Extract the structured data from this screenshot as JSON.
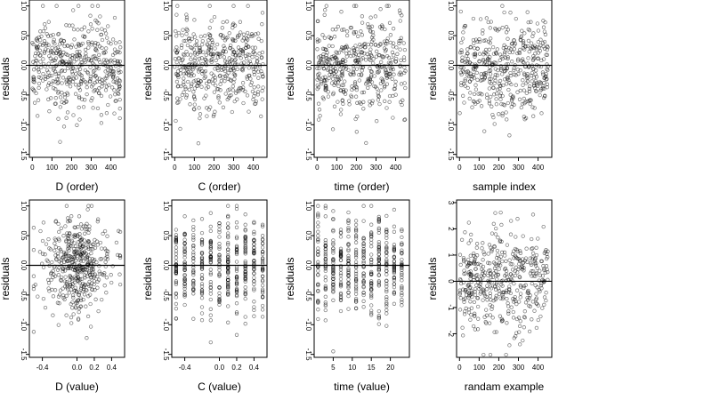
{
  "figure": {
    "ylabel": "residuals",
    "panels": [
      {
        "xlabel": "D (order)"
      },
      {
        "xlabel": "C (order)"
      },
      {
        "xlabel": "time (order)"
      },
      {
        "xlabel": "sample index"
      },
      {
        "xlabel": "D (value)"
      },
      {
        "xlabel": "C (value)"
      },
      {
        "xlabel": "time (value)"
      },
      {
        "xlabel": "randam example"
      }
    ]
  },
  "chart_data": [
    {
      "type": "scatter",
      "xlabel": "D (order)",
      "ylabel": "residuals",
      "xlim": [
        -15,
        470
      ],
      "ylim": [
        -1.55,
        1.1
      ],
      "xticks": [
        0,
        100,
        200,
        300,
        400
      ],
      "xtick_labels": [
        "0",
        "100",
        "200",
        "300",
        "400"
      ],
      "yticks": [
        -1.5,
        -1.0,
        -0.5,
        0.0,
        0.5,
        1.0
      ],
      "ytick_labels": [
        "-1.5",
        "-1.0",
        "-0.5",
        "0.0",
        "0.5",
        "1.0"
      ],
      "hline": 0,
      "n_points": 450,
      "x_distribution": "index",
      "x_range": [
        0,
        450
      ],
      "y_approx": {
        "mean": 0,
        "sd": 0.4,
        "min": -1.45,
        "max": 1.0
      }
    },
    {
      "type": "scatter",
      "xlabel": "C (order)",
      "ylabel": "residuals",
      "xlim": [
        -15,
        470
      ],
      "ylim": [
        -1.55,
        1.1
      ],
      "xticks": [
        0,
        100,
        200,
        300,
        400
      ],
      "xtick_labels": [
        "0",
        "100",
        "200",
        "300",
        "400"
      ],
      "yticks": [
        -1.5,
        -1.0,
        -0.5,
        0.0,
        0.5,
        1.0
      ],
      "ytick_labels": [
        "-1.5",
        "-1.0",
        "-0.5",
        "0.0",
        "0.5",
        "1.0"
      ],
      "hline": 0,
      "n_points": 450,
      "x_distribution": "index",
      "x_range": [
        0,
        450
      ],
      "y_approx": {
        "mean": 0,
        "sd": 0.4,
        "min": -1.45,
        "max": 1.0
      }
    },
    {
      "type": "scatter",
      "xlabel": "time (order)",
      "ylabel": "residuals",
      "xlim": [
        -15,
        470
      ],
      "ylim": [
        -1.55,
        1.1
      ],
      "xticks": [
        0,
        100,
        200,
        300,
        400
      ],
      "xtick_labels": [
        "0",
        "100",
        "200",
        "300",
        "400"
      ],
      "yticks": [
        -1.5,
        -1.0,
        -0.5,
        0.0,
        0.5,
        1.0
      ],
      "ytick_labels": [
        "-1.5",
        "-1.0",
        "-0.5",
        "0.0",
        "0.5",
        "1.0"
      ],
      "hline": 0,
      "n_points": 450,
      "x_distribution": "index",
      "x_range": [
        0,
        450
      ],
      "y_approx": {
        "mean": 0,
        "sd": 0.4,
        "min": -1.45,
        "max": 1.0
      }
    },
    {
      "type": "scatter",
      "xlabel": "sample index",
      "ylabel": "residuals",
      "xlim": [
        -15,
        470
      ],
      "ylim": [
        -1.55,
        1.1
      ],
      "xticks": [
        0,
        100,
        200,
        300,
        400
      ],
      "xtick_labels": [
        "0",
        "100",
        "200",
        "300",
        "400"
      ],
      "yticks": [
        -1.5,
        -1.0,
        -0.5,
        0.0,
        0.5,
        1.0
      ],
      "ytick_labels": [
        "-1.5",
        "-1.0",
        "-0.5",
        "0.0",
        "0.5",
        "1.0"
      ],
      "hline": 0,
      "n_points": 450,
      "x_distribution": "index",
      "x_range": [
        0,
        450
      ],
      "y_approx": {
        "mean": 0,
        "sd": 0.4,
        "min": -1.45,
        "max": 1.0
      }
    },
    {
      "type": "scatter",
      "xlabel": "D (value)",
      "ylabel": "residuals",
      "xlim": [
        -0.55,
        0.55
      ],
      "ylim": [
        -1.55,
        1.1
      ],
      "xticks": [
        -0.4,
        0.0,
        0.2,
        0.4
      ],
      "xtick_labels": [
        "-0.4",
        "0.0",
        "0.2",
        "0.4"
      ],
      "yticks": [
        -1.5,
        -1.0,
        -0.5,
        0.0,
        0.5,
        1.0
      ],
      "ytick_labels": [
        "-1.5",
        "-1.0",
        "-0.5",
        "0.0",
        "0.5",
        "1.0"
      ],
      "hline": 0,
      "n_points": 450,
      "x_distribution": "clustered-center",
      "x_range": [
        -0.5,
        0.5
      ],
      "y_approx": {
        "mean": 0,
        "sd": 0.4,
        "min": -1.45,
        "max": 1.0
      }
    },
    {
      "type": "scatter",
      "xlabel": "C (value)",
      "ylabel": "residuals",
      "xlim": [
        -0.55,
        0.55
      ],
      "ylim": [
        -1.55,
        1.1
      ],
      "xticks": [
        -0.4,
        0.0,
        0.2,
        0.4
      ],
      "xtick_labels": [
        "-0.4",
        "0.0",
        "0.2",
        "0.4"
      ],
      "yticks": [
        -1.5,
        -1.0,
        -0.5,
        0.0,
        0.5,
        1.0
      ],
      "ytick_labels": [
        "-1.5",
        "-1.0",
        "-0.5",
        "0.0",
        "0.5",
        "1.0"
      ],
      "hline": 0,
      "n_points": 450,
      "x_distribution": "discrete-columns",
      "x_columns": [
        -0.5,
        -0.4,
        -0.3,
        -0.2,
        -0.1,
        0.0,
        0.1,
        0.2,
        0.3,
        0.4,
        0.5
      ],
      "y_approx": {
        "mean": 0,
        "sd": 0.4,
        "min": -1.45,
        "max": 1.0
      }
    },
    {
      "type": "scatter",
      "xlabel": "time (value)",
      "ylabel": "residuals",
      "xlim": [
        0,
        25
      ],
      "ylim": [
        -1.55,
        1.1
      ],
      "xticks": [
        5,
        10,
        15,
        20
      ],
      "xtick_labels": [
        "5",
        "10",
        "15",
        "20"
      ],
      "yticks": [
        -1.5,
        -1.0,
        -0.5,
        0.0,
        0.5,
        1.0
      ],
      "ytick_labels": [
        "-1.5",
        "-1.0",
        "-0.5",
        "0.0",
        "0.5",
        "1.0"
      ],
      "hline": 0,
      "n_points": 450,
      "x_distribution": "discrete-columns",
      "x_columns": [
        1,
        3,
        5,
        7,
        9,
        11,
        13,
        15,
        17,
        19,
        21,
        23
      ],
      "y_approx": {
        "mean": 0,
        "sd": 0.4,
        "min": -1.45,
        "max": 1.0
      }
    },
    {
      "type": "scatter",
      "xlabel": "randam example",
      "ylabel": "residuals",
      "xlim": [
        -15,
        470
      ],
      "ylim": [
        -2.9,
        3.1
      ],
      "xticks": [
        0,
        100,
        200,
        300,
        400
      ],
      "xtick_labels": [
        "0",
        "100",
        "200",
        "300",
        "400"
      ],
      "yticks": [
        -2,
        -1,
        0,
        1,
        2,
        3
      ],
      "ytick_labels": [
        "-2",
        "-1",
        "0",
        "1",
        "2",
        "3"
      ],
      "hline": 0,
      "n_points": 450,
      "x_distribution": "index",
      "x_range": [
        0,
        450
      ],
      "y_approx": {
        "mean": 0,
        "sd": 1.0,
        "min": -2.8,
        "max": 2.9
      }
    }
  ]
}
